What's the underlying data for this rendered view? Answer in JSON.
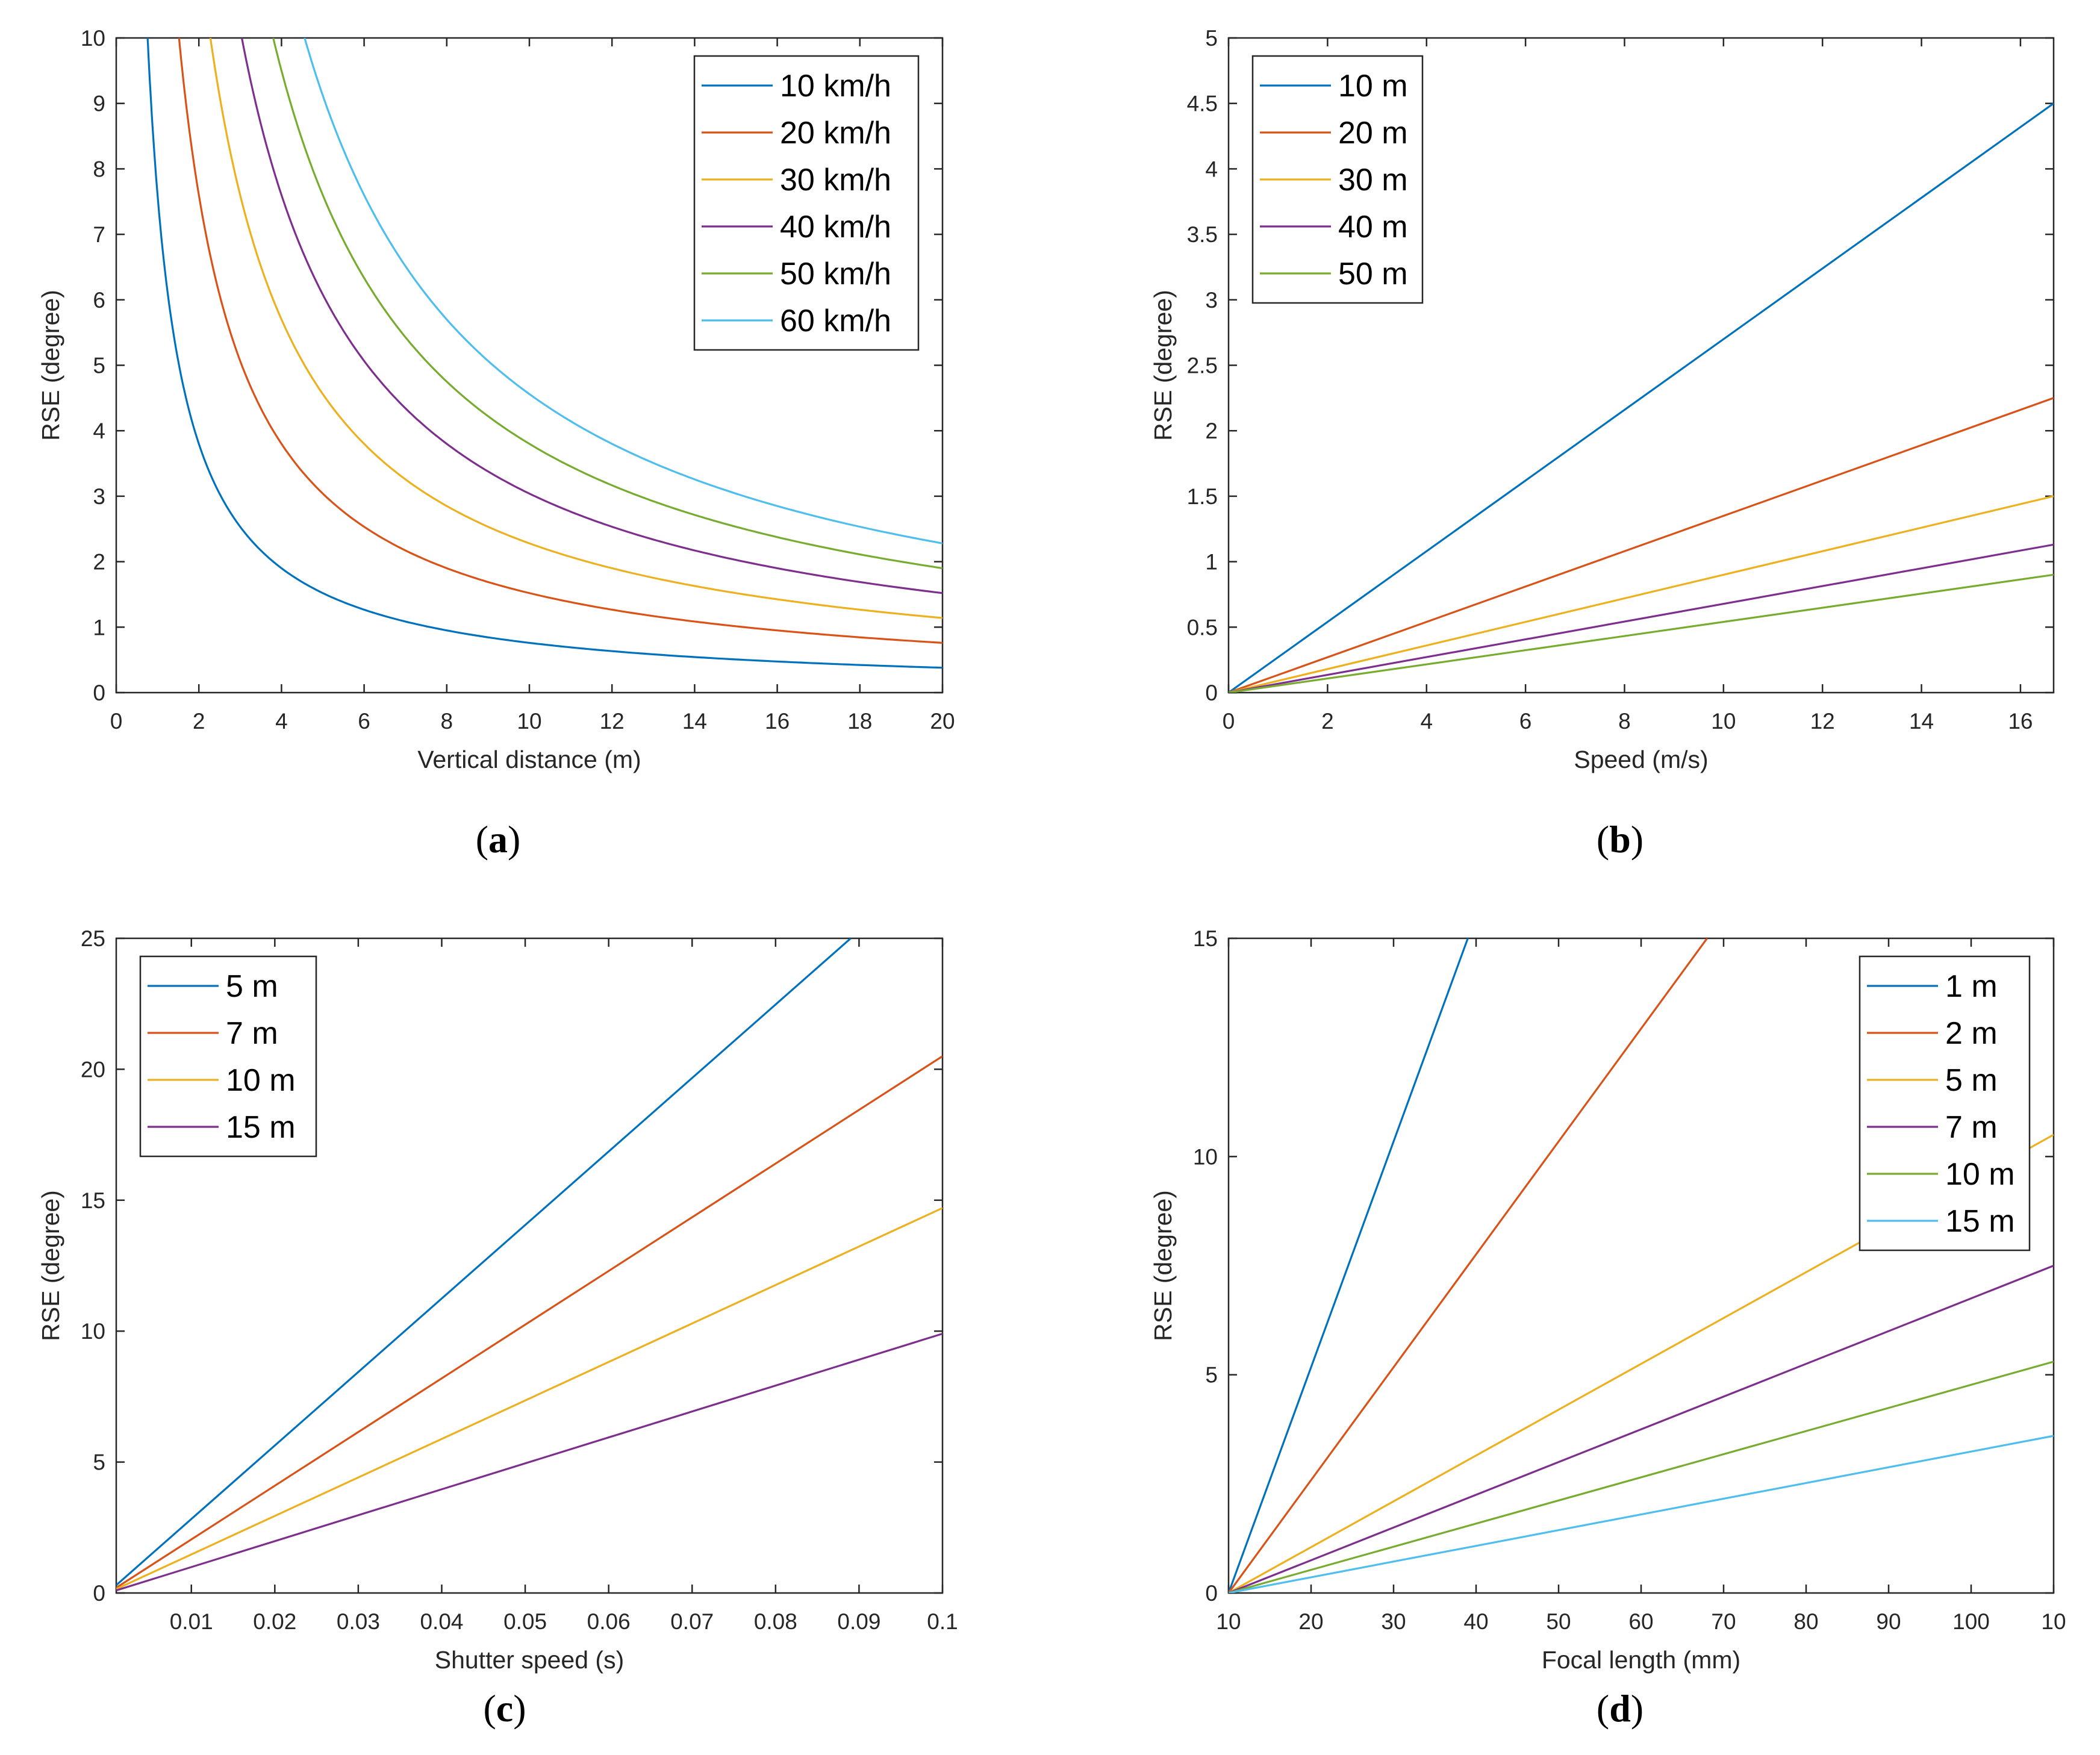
{
  "chart_data": [
    {
      "type": "line",
      "caption": "(a)",
      "xlabel": "Vertical distance (m)",
      "ylabel": "RSE (degree)",
      "xlim": [
        0,
        20
      ],
      "ylim": [
        0,
        10
      ],
      "xticks": [
        "0",
        "2",
        "4",
        "6",
        "8",
        "10",
        "12",
        "14",
        "16",
        "18",
        "20"
      ],
      "yticks": [
        "0",
        "1",
        "2",
        "3",
        "4",
        "5",
        "6",
        "7",
        "8",
        "9",
        "10"
      ],
      "legend_position": "top-right",
      "series": [
        {
          "name": "10 km/h",
          "color": "#0072BD",
          "x": [
            0.76,
            0.8,
            1,
            1.5,
            2,
            3,
            4,
            5,
            6,
            8,
            10,
            12,
            14,
            16,
            18,
            20
          ],
          "y": [
            10,
            9.5,
            7.6,
            5.07,
            3.8,
            2.53,
            1.9,
            1.52,
            1.27,
            0.95,
            0.76,
            0.63,
            0.54,
            0.48,
            0.42,
            0.38
          ]
        },
        {
          "name": "20 km/h",
          "color": "#D95319",
          "x": [
            1.52,
            2,
            3,
            4,
            5,
            6,
            8,
            10,
            12,
            14,
            16,
            18,
            20
          ],
          "y": [
            10,
            7.6,
            5.07,
            3.8,
            3.04,
            2.53,
            1.9,
            1.52,
            1.27,
            1.09,
            0.95,
            0.84,
            0.76
          ]
        },
        {
          "name": "30 km/h",
          "color": "#EDB120",
          "x": [
            2.28,
            3,
            4,
            5,
            6,
            8,
            10,
            12,
            14,
            16,
            18,
            20
          ],
          "y": [
            10,
            7.6,
            5.7,
            4.56,
            3.8,
            2.85,
            2.28,
            1.9,
            1.63,
            1.43,
            1.27,
            1.14
          ]
        },
        {
          "name": "40 km/h",
          "color": "#7E2F8E",
          "x": [
            3.04,
            4,
            5,
            6,
            8,
            10,
            12,
            14,
            16,
            18,
            20
          ],
          "y": [
            10,
            7.6,
            6.08,
            5.07,
            3.8,
            3.04,
            2.53,
            2.17,
            1.9,
            1.69,
            1.52
          ]
        },
        {
          "name": "50 km/h",
          "color": "#77AC30",
          "x": [
            3.8,
            4,
            5,
            6,
            8,
            10,
            12,
            14,
            16,
            18,
            20
          ],
          "y": [
            10,
            9.5,
            7.6,
            6.33,
            4.75,
            3.8,
            3.17,
            2.71,
            2.38,
            2.11,
            1.9
          ]
        },
        {
          "name": "60 km/h",
          "color": "#4DBEEE",
          "x": [
            4.56,
            5,
            6,
            8,
            10,
            12,
            14,
            16,
            18,
            20
          ],
          "y": [
            10,
            9.12,
            7.6,
            5.7,
            4.56,
            3.8,
            3.26,
            2.85,
            2.53,
            2.28
          ]
        }
      ]
    },
    {
      "type": "line",
      "caption": "(b)",
      "xlabel": "Speed (m/s)",
      "ylabel": "RSE (degree)",
      "xlim": [
        0,
        16.67
      ],
      "ylim": [
        0,
        5
      ],
      "xticks": [
        "0",
        "2",
        "4",
        "6",
        "8",
        "10",
        "12",
        "14",
        "16"
      ],
      "yticks": [
        "0",
        "0.5",
        "1",
        "1.5",
        "2",
        "2.5",
        "3",
        "3.5",
        "4",
        "4.5",
        "5"
      ],
      "legend_position": "top-left",
      "series": [
        {
          "name": "10 m",
          "color": "#0072BD",
          "x": [
            0,
            16.67
          ],
          "y": [
            0,
            4.5
          ]
        },
        {
          "name": "20 m",
          "color": "#D95319",
          "x": [
            0,
            16.67
          ],
          "y": [
            0,
            2.25
          ]
        },
        {
          "name": "30 m",
          "color": "#EDB120",
          "x": [
            0,
            16.67
          ],
          "y": [
            0,
            1.5
          ]
        },
        {
          "name": "40 m",
          "color": "#7E2F8E",
          "x": [
            0,
            16.67
          ],
          "y": [
            0,
            1.13
          ]
        },
        {
          "name": "50 m",
          "color": "#77AC30",
          "x": [
            0,
            16.67
          ],
          "y": [
            0,
            0.9
          ]
        }
      ]
    },
    {
      "type": "line",
      "caption": "(c)",
      "xlabel": "Shutter speed (s)",
      "ylabel": "RSE (degree)",
      "xlim": [
        0.001,
        0.1
      ],
      "ylim": [
        0,
        25
      ],
      "xticks": [
        "0.01",
        "0.02",
        "0.03",
        "0.04",
        "0.05",
        "0.06",
        "0.07",
        "0.08",
        "0.09",
        "0.1"
      ],
      "yticks": [
        "0",
        "5",
        "10",
        "15",
        "20",
        "25"
      ],
      "legend_position": "top-left",
      "series": [
        {
          "name": "5 m",
          "color": "#0072BD",
          "x": [
            0.001,
            0.089
          ],
          "y": [
            0.3,
            25
          ]
        },
        {
          "name": "7 m",
          "color": "#D95319",
          "x": [
            0.001,
            0.1
          ],
          "y": [
            0.2,
            20.5
          ]
        },
        {
          "name": "10 m",
          "color": "#EDB120",
          "x": [
            0.001,
            0.1
          ],
          "y": [
            0.15,
            14.7
          ]
        },
        {
          "name": "15 m",
          "color": "#7E2F8E",
          "x": [
            0.001,
            0.1
          ],
          "y": [
            0.1,
            9.9
          ]
        }
      ]
    },
    {
      "type": "line",
      "caption": "(d)",
      "xlabel": "Focal length (mm)",
      "ylabel": "RSE (degree)",
      "xlim": [
        10,
        110
      ],
      "ylim": [
        0,
        15
      ],
      "xticks": [
        "10",
        "20",
        "30",
        "40",
        "50",
        "60",
        "70",
        "80",
        "90",
        "100",
        "10"
      ],
      "yticks": [
        "0",
        "5",
        "10",
        "15"
      ],
      "legend_position": "top-right",
      "series": [
        {
          "name": "1 m",
          "color": "#0072BD",
          "x": [
            10,
            39
          ],
          "y": [
            0,
            15
          ]
        },
        {
          "name": "2 m",
          "color": "#D95319",
          "x": [
            10,
            68
          ],
          "y": [
            0,
            15
          ]
        },
        {
          "name": "5 m",
          "color": "#EDB120",
          "x": [
            10,
            110
          ],
          "y": [
            0,
            10.5
          ]
        },
        {
          "name": "7 m",
          "color": "#7E2F8E",
          "x": [
            10,
            110
          ],
          "y": [
            0,
            7.5
          ]
        },
        {
          "name": "10 m",
          "color": "#77AC30",
          "x": [
            10,
            110
          ],
          "y": [
            0,
            5.3
          ]
        },
        {
          "name": "15 m",
          "color": "#4DBEEE",
          "x": [
            10,
            110
          ],
          "y": [
            0,
            3.6
          ]
        }
      ]
    }
  ]
}
